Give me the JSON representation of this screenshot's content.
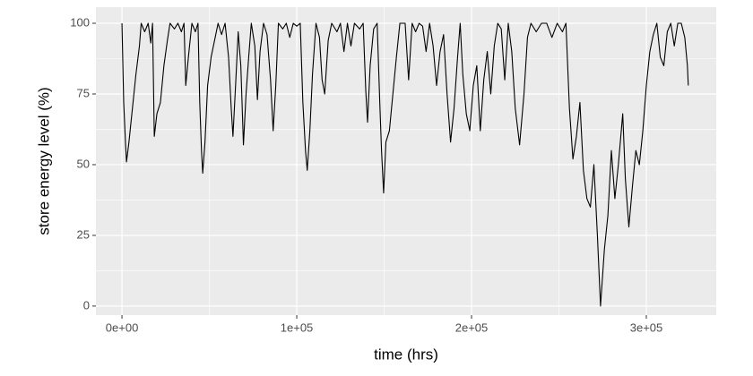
{
  "chart_data": {
    "type": "line",
    "x_label": "time (hrs)",
    "y_label": "store energy level (%)",
    "color": "#000000",
    "grid": true,
    "xlim": [
      -14900,
      340000
    ],
    "ylim": [
      -3.2,
      105.7
    ],
    "xticks": [
      {
        "value": 0,
        "label": "0e+00"
      },
      {
        "value": 100000,
        "label": "1e+05"
      },
      {
        "value": 200000,
        "label": "2e+05"
      },
      {
        "value": 300000,
        "label": "3e+05"
      }
    ],
    "yticks": [
      0,
      25,
      50,
      75,
      100
    ],
    "x_minor_ticks": [
      50000,
      150000,
      250000
    ],
    "y_minor_ticks": [
      12.5,
      37.5,
      62.5,
      87.5
    ],
    "x": [
      0,
      1000,
      2000,
      2600,
      4000,
      6000,
      8000,
      10000,
      11000,
      13000,
      15000,
      16500,
      17500,
      18500,
      20000,
      22000,
      24000,
      26000,
      27500,
      30000,
      32000,
      34000,
      35500,
      36500,
      38000,
      40000,
      42000,
      43500,
      44500,
      45500,
      46200,
      47500,
      49000,
      51000,
      53000,
      55000,
      57000,
      59000,
      61000,
      62500,
      63500,
      65000,
      66500,
      68000,
      69500,
      71000,
      72500,
      74000,
      76000,
      77500,
      79000,
      81000,
      83000,
      85000,
      86500,
      88000,
      89500,
      92000,
      94000,
      96000,
      98000,
      100000,
      102000,
      103500,
      105000,
      106000,
      107500,
      109000,
      111000,
      113000,
      114500,
      116000,
      118000,
      120000,
      123000,
      125000,
      127000,
      129000,
      131000,
      133000,
      136000,
      138000,
      139500,
      140500,
      142000,
      144000,
      146000,
      147500,
      148500,
      149700,
      151000,
      153000,
      155000,
      157000,
      159000,
      162000,
      164000,
      166000,
      168000,
      170000,
      172000,
      174000,
      176000,
      178000,
      180000,
      182000,
      184000,
      186000,
      188000,
      190000,
      192000,
      193500,
      195000,
      197000,
      199000,
      201000,
      203000,
      205000,
      207000,
      209000,
      211000,
      213000,
      215000,
      217000,
      219000,
      221000,
      223000,
      225000,
      227500,
      230000,
      232000,
      234000,
      237000,
      240000,
      243000,
      246000,
      249000,
      252000,
      254000,
      256000,
      258000,
      260000,
      262000,
      264000,
      266000,
      268000,
      270000,
      272000,
      273800,
      276000,
      278000,
      280000,
      282000,
      284000,
      286500,
      288000,
      290000,
      292000,
      294000,
      296000,
      298000,
      300000,
      302000,
      304000,
      306000,
      308000,
      310000,
      312000,
      314000,
      316000,
      318000,
      320000,
      322000,
      323500,
      324000
    ],
    "values": [
      100,
      72,
      58,
      51,
      58,
      70,
      82,
      92,
      100,
      97,
      100,
      93,
      100,
      60,
      68,
      72,
      85,
      94,
      100,
      98,
      100,
      97,
      100,
      78,
      88,
      100,
      97,
      100,
      72,
      55,
      47,
      58,
      78,
      88,
      94,
      100,
      96,
      100,
      88,
      70,
      60,
      78,
      97,
      85,
      57,
      75,
      88,
      100,
      92,
      73,
      90,
      100,
      96,
      80,
      62,
      78,
      100,
      98,
      100,
      95,
      100,
      99,
      100,
      72,
      55,
      48,
      62,
      82,
      100,
      95,
      80,
      75,
      94,
      100,
      97,
      100,
      90,
      100,
      92,
      100,
      98,
      100,
      76,
      65,
      85,
      98,
      100,
      72,
      55,
      40,
      58,
      62,
      75,
      88,
      100,
      100,
      80,
      100,
      97,
      100,
      99,
      90,
      100,
      92,
      78,
      90,
      96,
      75,
      58,
      70,
      88,
      100,
      82,
      68,
      62,
      78,
      85,
      62,
      80,
      90,
      75,
      92,
      100,
      98,
      80,
      100,
      90,
      70,
      57,
      75,
      95,
      100,
      97,
      100,
      100,
      95,
      100,
      97,
      100,
      70,
      52,
      60,
      72,
      48,
      38,
      35,
      50,
      25,
      0,
      20,
      32,
      55,
      38,
      50,
      68,
      45,
      28,
      42,
      55,
      50,
      62,
      78,
      90,
      96,
      100,
      88,
      85,
      97,
      100,
      92,
      100,
      100,
      95,
      85,
      78
    ]
  }
}
